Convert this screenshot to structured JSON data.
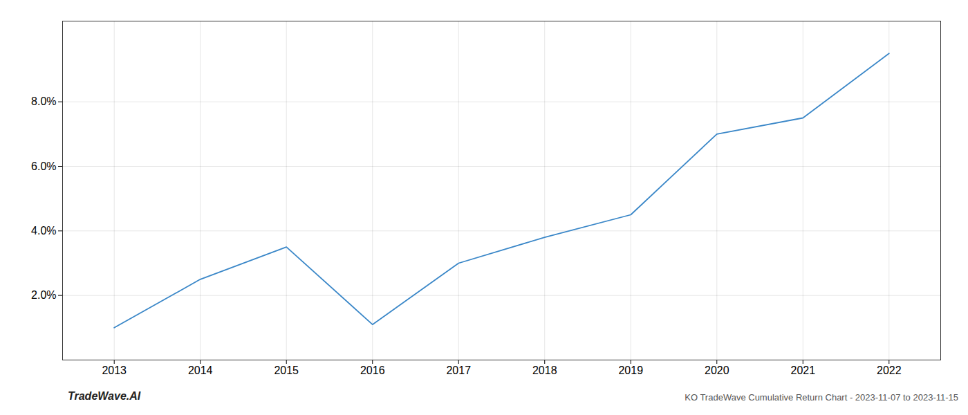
{
  "chart_data": {
    "type": "line",
    "title": "KO TradeWave Cumulative Return Chart - 2023-11-07 to 2023-11-15",
    "annotations": [
      "TradeWave.AI"
    ],
    "x": [
      2013,
      2014,
      2015,
      2016,
      2017,
      2018,
      2019,
      2020,
      2021,
      2022
    ],
    "values": [
      1.0,
      2.5,
      3.5,
      1.1,
      3.0,
      3.8,
      4.5,
      7.0,
      7.5,
      9.5
    ],
    "color": "#3a87c8",
    "xlim": [
      2012.4,
      2022.6
    ],
    "ylim": [
      0.0,
      10.5
    ],
    "xticks": [
      2013,
      2014,
      2015,
      2016,
      2017,
      2018,
      2019,
      2020,
      2021,
      2022
    ],
    "yticks": [
      {
        "value": 2.0,
        "label": "2.0%"
      },
      {
        "value": 4.0,
        "label": "4.0%"
      },
      {
        "value": 6.0,
        "label": "6.0%"
      },
      {
        "value": 8.0,
        "label": "8.0%"
      }
    ],
    "grid": true
  }
}
